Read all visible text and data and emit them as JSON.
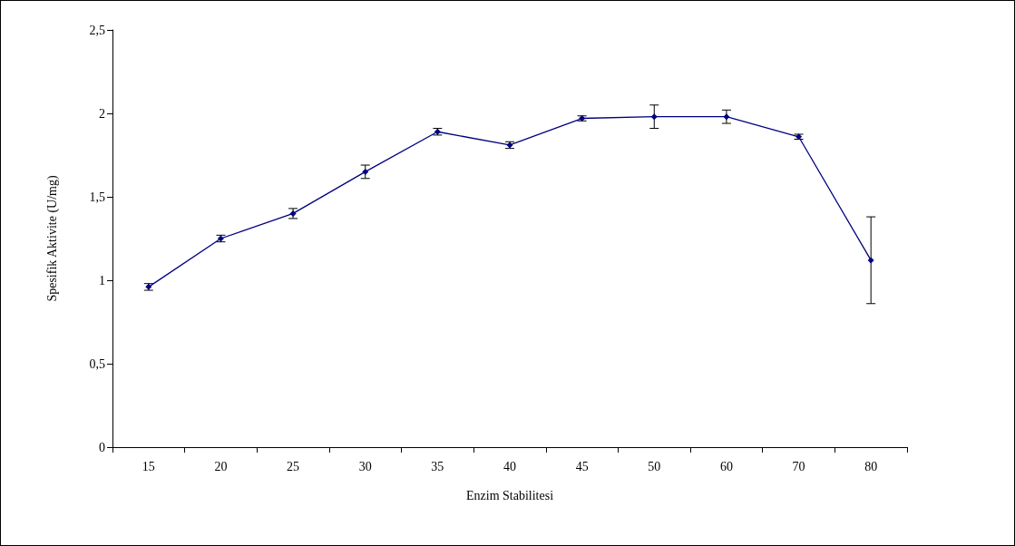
{
  "chart_data": {
    "type": "line",
    "xlabel": "Enzim Stabilitesi",
    "ylabel": "Spesifik Aktivite (U/mg)",
    "categories": [
      "15",
      "20",
      "25",
      "30",
      "35",
      "40",
      "45",
      "50",
      "60",
      "70",
      "80"
    ],
    "series": [
      {
        "color": "#000080",
        "values": [
          0.96,
          1.25,
          1.4,
          1.65,
          1.89,
          1.81,
          1.97,
          1.98,
          1.98,
          1.86,
          1.12
        ],
        "errors": [
          0.02,
          0.02,
          0.03,
          0.04,
          0.02,
          0.02,
          0.015,
          0.07,
          0.04,
          0.015,
          0.26
        ]
      }
    ],
    "ylim": [
      0,
      2.5
    ],
    "yticks": [
      0,
      {
        "value": 0.5,
        "label": "0,5"
      },
      1,
      {
        "value": 1.5,
        "label": "1,5"
      },
      2,
      {
        "value": 2.5,
        "label": "2,5"
      }
    ],
    "grid": false,
    "marker": "diamond",
    "line_style": "solid"
  }
}
